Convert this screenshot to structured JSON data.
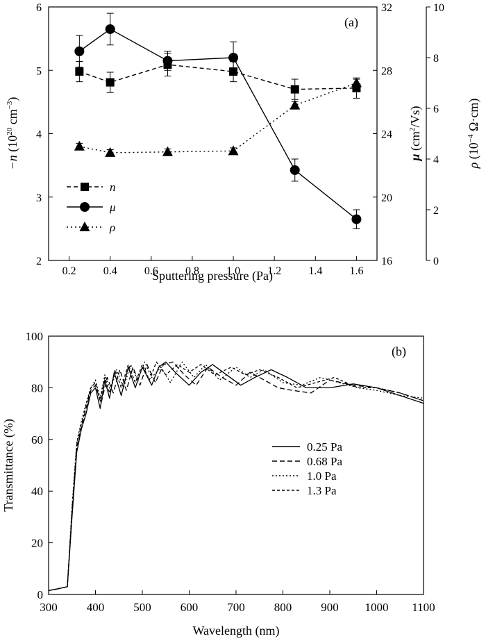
{
  "chart_data": [
    {
      "panel_label": "(a)",
      "type": "line",
      "xlabel": "Sputtering pressure (Pa)",
      "x_ticks": [
        "0.2",
        "0.4",
        "0.6",
        "0.8",
        "1.0",
        "1.2",
        "1.4",
        "1.6"
      ],
      "xlim": [
        0.1,
        1.7
      ],
      "ylabel_left_prefix": "−n",
      "ylabel_left_rest": " (10",
      "ylabel_left_sup": "20",
      "ylabel_left_after": " cm",
      "ylabel_left_sup2": "−3",
      "ylabel_left_end": ")",
      "ylim_left": [
        2,
        6
      ],
      "y_ticks_left": [
        "2",
        "3",
        "4",
        "5",
        "6"
      ],
      "ylabel_mid_prefix": "μ",
      "ylabel_mid_rest": " (cm",
      "ylabel_mid_sup": "2",
      "ylabel_mid_end": "/Vs)",
      "ylim_mid": [
        16,
        32
      ],
      "y_ticks_mid": [
        "16",
        "20",
        "24",
        "28",
        "32"
      ],
      "ylabel_right_prefix": "ρ",
      "ylabel_right_rest": " (10",
      "ylabel_right_sup": "−4",
      "ylabel_right_end": " Ω·cm)",
      "ylim_right": [
        0,
        10
      ],
      "y_ticks_right": [
        "0",
        "2",
        "4",
        "6",
        "8",
        "10"
      ],
      "legend_position": "bottom-left",
      "series": [
        {
          "name": "n",
          "axis": "left",
          "marker": "square",
          "dash": "6,4",
          "x": [
            0.25,
            0.4,
            0.68,
            1.0,
            1.3,
            1.6
          ],
          "y": [
            4.98,
            4.81,
            5.09,
            4.98,
            4.7,
            4.72
          ],
          "err": [
            0.16,
            0.16,
            0.18,
            0.16,
            0.16,
            0.16
          ]
        },
        {
          "name": "μ",
          "axis": "mid",
          "marker": "circle",
          "dash": "",
          "x": [
            0.25,
            0.4,
            0.68,
            1.0,
            1.3,
            1.6
          ],
          "y": [
            29.2,
            30.6,
            28.6,
            28.8,
            21.7,
            18.6
          ],
          "err": [
            1.0,
            1.0,
            0.6,
            1.0,
            0.7,
            0.6
          ]
        },
        {
          "name": "ρ",
          "axis": "right",
          "marker": "triangle",
          "dash": "2,4",
          "x": [
            0.25,
            0.4,
            0.68,
            1.0,
            1.3,
            1.6
          ],
          "y": [
            4.5,
            4.25,
            4.28,
            4.32,
            6.12,
            7.0
          ],
          "err": [
            0.12,
            0.12,
            0.12,
            0.12,
            0.15,
            0.15
          ]
        }
      ]
    },
    {
      "panel_label": "(b)",
      "type": "line",
      "xlabel": "Wavelength (nm)",
      "ylabel": "Transmittance (%)",
      "xlim": [
        300,
        1100
      ],
      "ylim": [
        0,
        100
      ],
      "x_ticks": [
        "300",
        "400",
        "500",
        "600",
        "700",
        "800",
        "900",
        "1000",
        "1100"
      ],
      "y_ticks": [
        "0",
        "20",
        "40",
        "60",
        "80",
        "100"
      ],
      "legend_position": "right-middle",
      "series": [
        {
          "name": "0.25 Pa",
          "dash": "",
          "x": [
            300,
            320,
            340,
            350,
            360,
            370,
            380,
            390,
            400,
            410,
            420,
            430,
            440,
            455,
            470,
            485,
            500,
            520,
            535,
            550,
            570,
            600,
            625,
            650,
            680,
            710,
            740,
            775,
            810,
            850,
            900,
            950,
            1000,
            1050,
            1100
          ],
          "y": [
            1.5,
            2.2,
            3,
            30,
            55,
            64,
            70,
            78,
            80,
            72,
            83,
            76,
            86,
            77,
            88,
            80,
            88,
            81,
            88,
            90,
            86,
            81,
            86,
            89,
            85,
            81,
            84,
            87,
            84,
            80,
            80,
            81.5,
            80,
            77,
            74
          ]
        },
        {
          "name": "0.68 Pa",
          "dash": "7,4",
          "x": [
            300,
            320,
            340,
            350,
            360,
            370,
            380,
            390,
            400,
            412,
            425,
            438,
            452,
            466,
            480,
            495,
            510,
            528,
            545,
            565,
            590,
            615,
            640,
            670,
            700,
            730,
            760,
            790,
            820,
            860,
            900,
            950,
            1000,
            1050,
            1100
          ],
          "y": [
            1.5,
            2.2,
            3,
            32,
            57,
            65,
            72,
            79,
            81,
            74,
            84,
            78,
            87,
            79,
            88,
            81,
            89,
            82,
            89,
            90,
            85,
            81,
            88,
            84,
            81,
            86,
            83,
            80,
            79,
            78,
            83,
            81,
            80,
            78,
            75
          ]
        },
        {
          "name": "1.0 Pa",
          "dash": "2,3",
          "x": [
            300,
            320,
            340,
            350,
            360,
            370,
            380,
            390,
            400,
            410,
            420,
            432,
            445,
            460,
            475,
            490,
            505,
            520,
            540,
            560,
            585,
            610,
            635,
            665,
            700,
            730,
            760,
            800,
            840,
            880,
            920,
            960,
            1000,
            1050,
            1100
          ],
          "y": [
            1.5,
            2.2,
            3,
            34,
            59,
            67,
            74,
            80,
            83,
            76,
            85,
            79,
            87,
            80,
            89,
            83,
            90,
            84,
            88,
            82,
            90,
            84,
            89,
            83,
            88,
            84,
            87,
            82,
            81,
            84,
            82,
            80,
            79,
            77,
            76
          ]
        },
        {
          "name": "1.3 Pa",
          "dash": "4,3",
          "x": [
            300,
            320,
            340,
            350,
            360,
            370,
            380,
            390,
            400,
            410,
            420,
            430,
            442,
            455,
            470,
            485,
            500,
            515,
            530,
            550,
            575,
            600,
            625,
            655,
            690,
            720,
            750,
            790,
            830,
            870,
            910,
            960,
            1000,
            1050,
            1100
          ],
          "y": [
            1.5,
            2.2,
            3,
            33,
            58,
            66,
            73,
            80,
            82,
            75,
            84,
            78,
            87,
            80,
            89,
            82,
            89,
            83,
            90,
            85,
            89,
            86,
            89,
            85,
            88,
            85,
            87,
            84,
            80,
            82,
            84,
            80,
            80,
            78,
            75
          ]
        }
      ]
    }
  ]
}
